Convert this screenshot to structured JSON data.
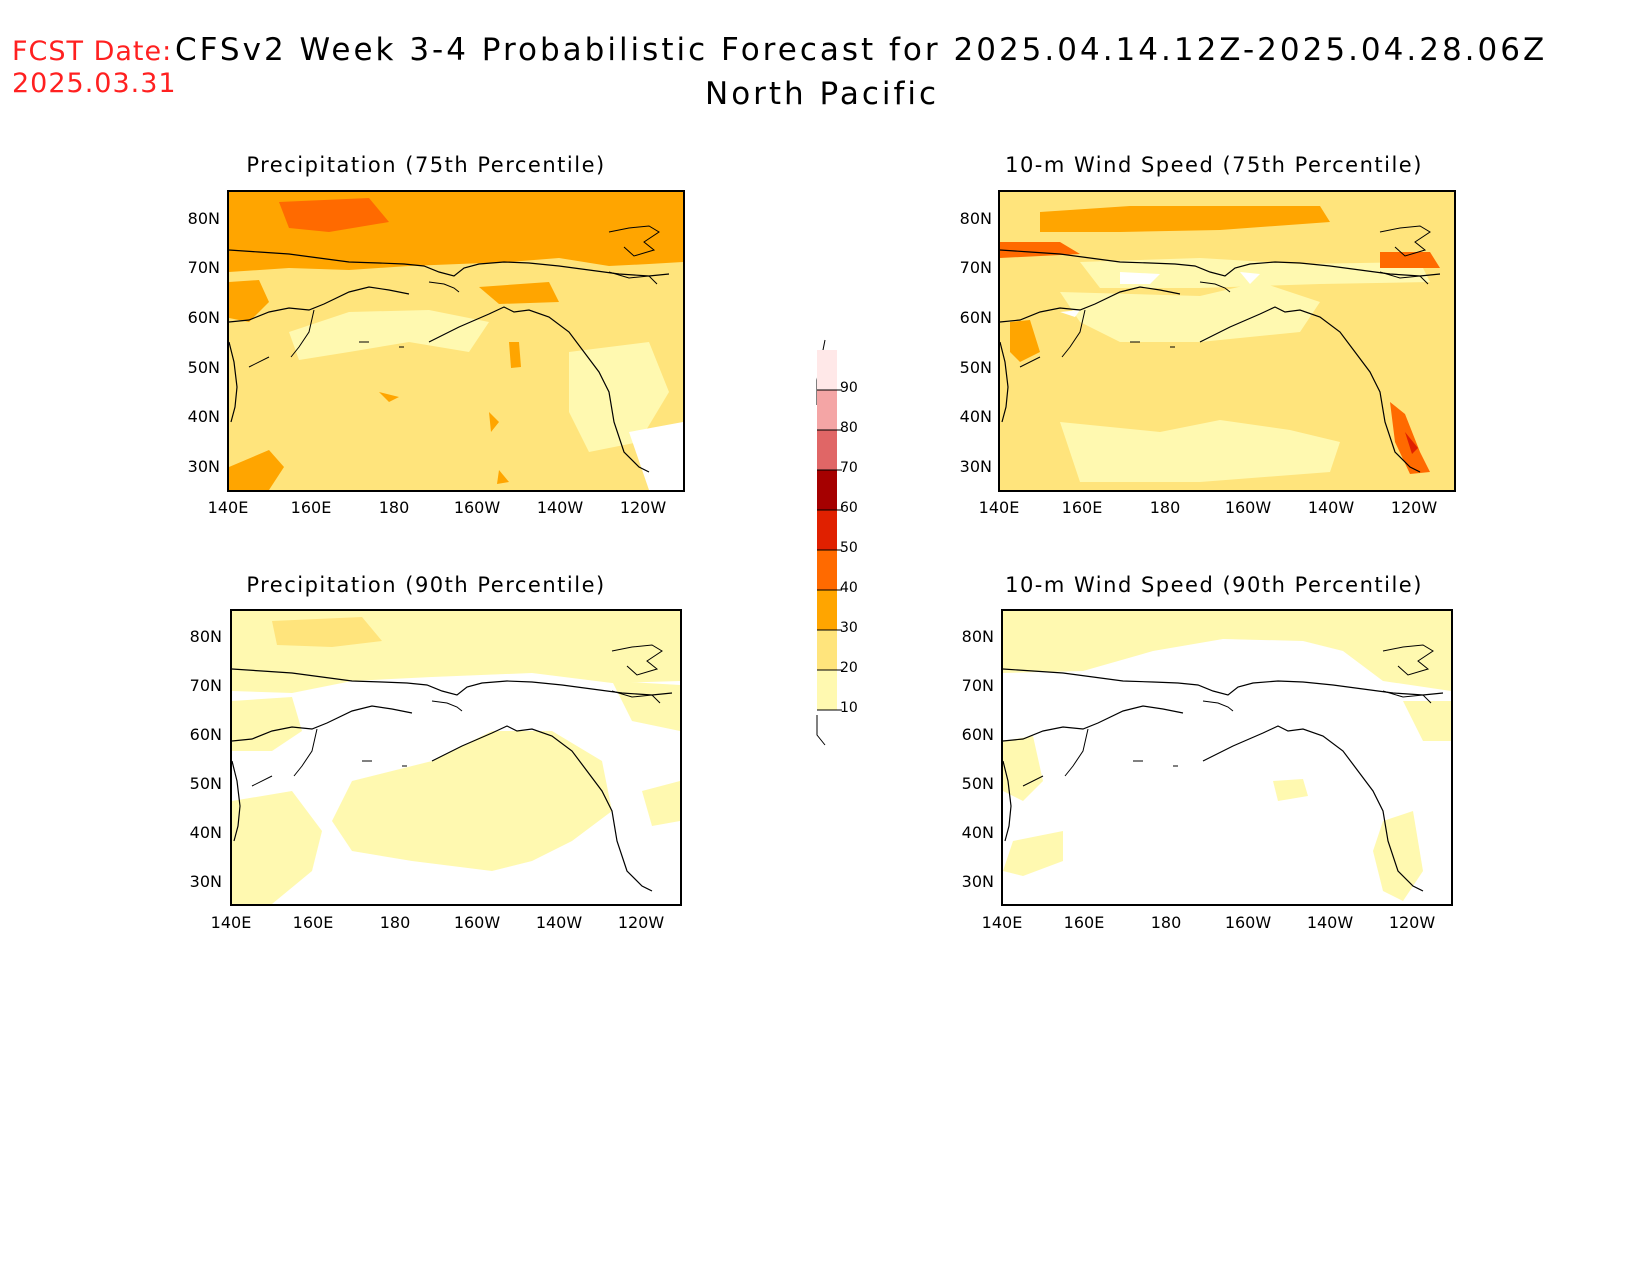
{
  "header": {
    "fcst_label": "FCST Date:",
    "fcst_date": "2025.03.31",
    "title_line1": "CFSv2 Week 3-4 Probabilistic Forecast for 2025.04.14.12Z-2025.04.28.06Z",
    "title_line2": "North Pacific"
  },
  "axes": {
    "lat_labels": [
      "80N",
      "70N",
      "60N",
      "50N",
      "40N",
      "30N"
    ],
    "lon_labels": [
      "140E",
      "160E",
      "180",
      "160W",
      "140W",
      "120W"
    ]
  },
  "panels": [
    {
      "title": "Precipitation (75th Percentile)",
      "field": "precip-75",
      "dominant_category": "20-30"
    },
    {
      "title": "10-m Wind Speed (75th Percentile)",
      "field": "wind-75",
      "dominant_category": "20-30"
    },
    {
      "title": "Precipitation (90th Percentile)",
      "field": "precip-90",
      "dominant_category": "<10"
    },
    {
      "title": "10-m Wind Speed (90th Percentile)",
      "field": "wind-90",
      "dominant_category": "<10"
    }
  ],
  "colorbar": {
    "labels": [
      "10",
      "20",
      "30",
      "40",
      "50",
      "60",
      "70",
      "80",
      "90"
    ],
    "colors": [
      "#fff9b0",
      "#ffe47c",
      "#ffa500",
      "#ff6a00",
      "#e02000",
      "#a50000",
      "#e06666",
      "#f4a5a5",
      "#ffe8e8"
    ]
  }
}
